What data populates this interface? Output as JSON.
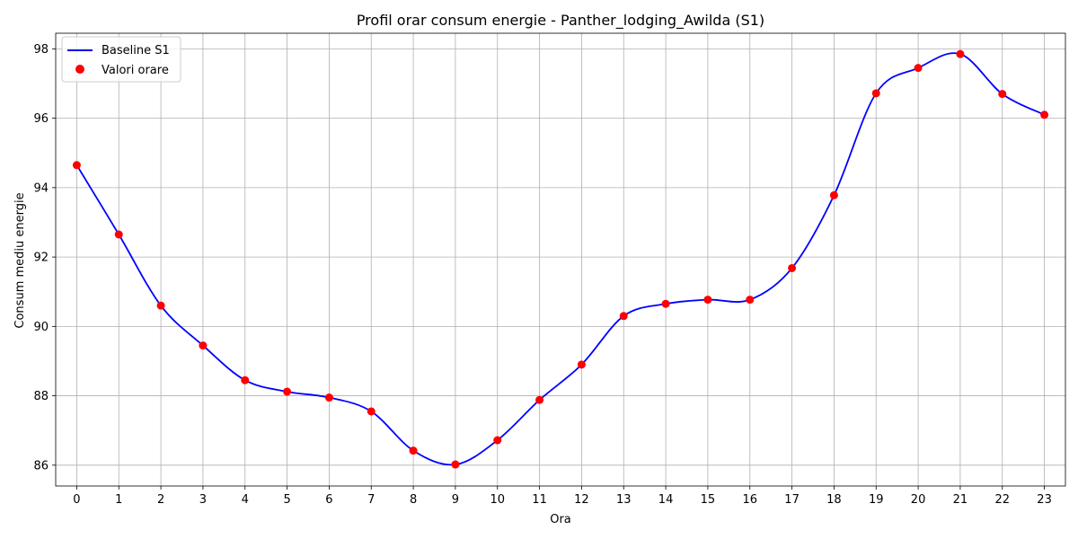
{
  "chart_data": {
    "type": "line",
    "title": "Profil orar consum energie - Panther_lodging_Awilda (S1)",
    "xlabel": "Ora",
    "ylabel": "Consum mediu energie",
    "x": [
      0,
      1,
      2,
      3,
      4,
      5,
      6,
      7,
      8,
      9,
      10,
      11,
      12,
      13,
      14,
      15,
      16,
      17,
      18,
      19,
      20,
      21,
      22,
      23
    ],
    "x_ticks": [
      "0",
      "1",
      "2",
      "3",
      "4",
      "5",
      "6",
      "7",
      "8",
      "9",
      "10",
      "11",
      "12",
      "13",
      "14",
      "15",
      "16",
      "17",
      "18",
      "19",
      "20",
      "21",
      "22",
      "23"
    ],
    "y_ticks": [
      "86",
      "88",
      "90",
      "92",
      "94",
      "96",
      "98"
    ],
    "xlim": [
      -0.5,
      23.5
    ],
    "ylim": [
      85.4,
      98.45
    ],
    "grid": true,
    "legend_position": "top-left",
    "series": [
      {
        "name": "Baseline S1",
        "kind": "smooth-line",
        "color": "#0000ff",
        "values": [
          94.65,
          92.65,
          90.6,
          89.45,
          88.45,
          88.12,
          87.95,
          87.55,
          86.42,
          86.02,
          86.72,
          87.88,
          88.9,
          90.3,
          90.65,
          90.77,
          90.77,
          91.68,
          93.78,
          96.72,
          97.45,
          97.85,
          96.7,
          96.1
        ]
      },
      {
        "name": "Valori orare",
        "kind": "scatter",
        "color": "#ff0000",
        "values": [
          94.65,
          92.65,
          90.6,
          89.45,
          88.45,
          88.12,
          87.95,
          87.55,
          86.42,
          86.02,
          86.72,
          87.88,
          88.9,
          90.3,
          90.65,
          90.77,
          90.77,
          91.68,
          93.78,
          96.72,
          97.45,
          97.85,
          96.7,
          96.1
        ]
      }
    ]
  }
}
